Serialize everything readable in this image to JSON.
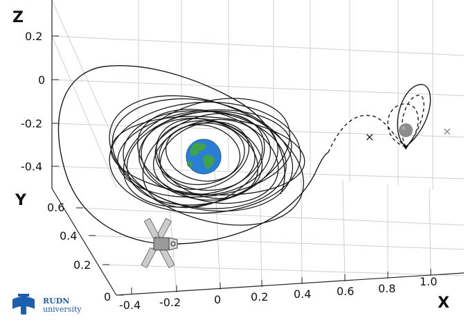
{
  "axes": {
    "z": {
      "label": "Z",
      "ticks": [
        "0.2",
        "0",
        "-0.2",
        "-0.4"
      ]
    },
    "y": {
      "label": "Y",
      "ticks": [
        "0.6",
        "0.4",
        "0.2",
        "0"
      ]
    },
    "x": {
      "label": "X",
      "ticks": [
        "-0.4",
        "-0.2",
        "0",
        "0.2",
        "0.4",
        "0.6",
        "0.8",
        "1.0"
      ]
    }
  },
  "markers": {
    "cross_symbol": "×"
  },
  "logo": {
    "line1": "RUDN",
    "line2": "university",
    "icon": "rudn-logo-icon"
  },
  "colors": {
    "earth_ocean": "#2a7fd4",
    "earth_land": "#3fa34d",
    "moon": "#8c8c8c",
    "logo": "#1d5fae",
    "grid": "#cfcfcf"
  }
}
